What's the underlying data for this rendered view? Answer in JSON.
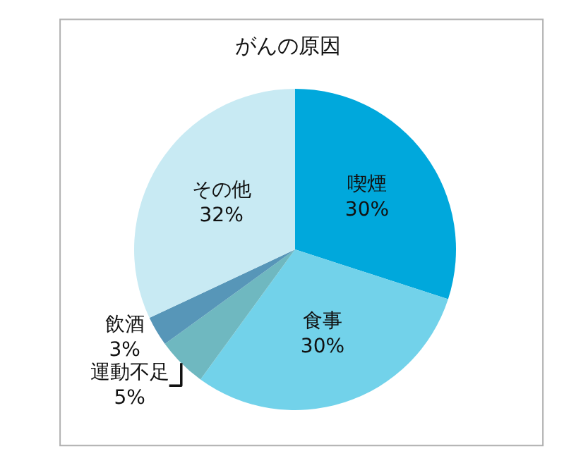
{
  "chart_data": {
    "type": "pie",
    "title": "がんの原因",
    "categories": [
      "喫煙",
      "食事",
      "運動不足",
      "飲酒",
      "その他"
    ],
    "values": [
      30,
      30,
      5,
      3,
      32
    ],
    "value_labels": [
      "30%",
      "30%",
      "5%",
      "3%",
      "32%"
    ],
    "colors": [
      "#00a8dc",
      "#72d2ea",
      "#6fb8c0",
      "#5796b8",
      "#c8eaf3"
    ],
    "legend": false
  }
}
